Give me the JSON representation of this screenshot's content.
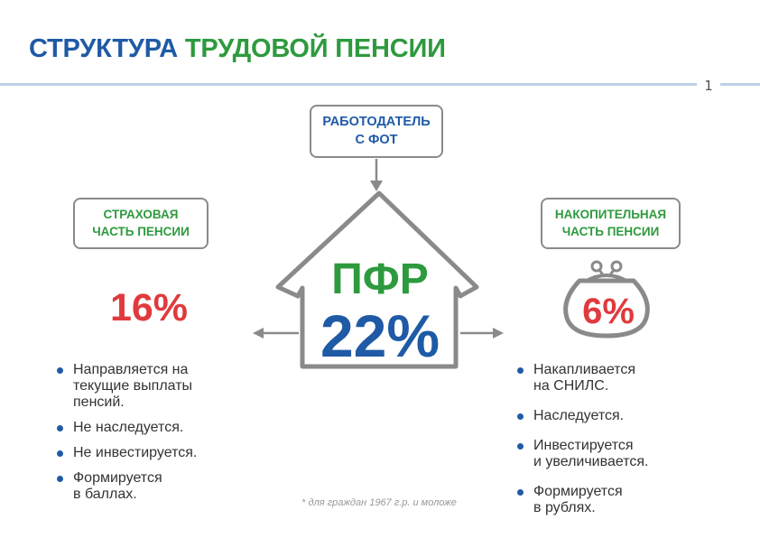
{
  "title": {
    "part1": "СТРУКТУРА",
    "part2": "ТРУДОВОЙ ПЕНСИИ"
  },
  "page_number": "1",
  "employer_box": {
    "line1": "РАБОТОДАТЕЛЬ",
    "line2": "С ФОТ"
  },
  "center": {
    "label": "ПФР",
    "percent": "22%"
  },
  "left": {
    "box": {
      "line1": "СТРАХОВАЯ",
      "line2": "ЧАСТЬ ПЕНСИИ"
    },
    "percent": "16%",
    "items": [
      [
        "Направляется на",
        "текущие выплаты",
        "пенсий."
      ],
      [
        "Не наследуется."
      ],
      [
        "Не инвестируется."
      ],
      [
        "Формируется",
        "в баллах."
      ]
    ]
  },
  "right": {
    "box": {
      "line1": "НАКОПИТЕЛЬНАЯ",
      "line2": "ЧАСТЬ ПЕНСИИ"
    },
    "percent": "6%",
    "items": [
      [
        "Накапливается",
        "на СНИЛС."
      ],
      [
        "Наследуется."
      ],
      [
        "Инвестируется",
        "и увеличивается."
      ],
      [
        "Формируется",
        "в рублях."
      ]
    ]
  },
  "footnote": "* для граждан 1967 г.р. и моложе",
  "colors": {
    "blue": "#1f5aa6",
    "green": "#2e9a3e",
    "red": "#e03a3e",
    "outline": "#8a8a8a"
  },
  "icons": [
    "house-icon",
    "wallet-icon",
    "arrow-down-icon",
    "arrow-left-icon",
    "arrow-right-icon"
  ]
}
